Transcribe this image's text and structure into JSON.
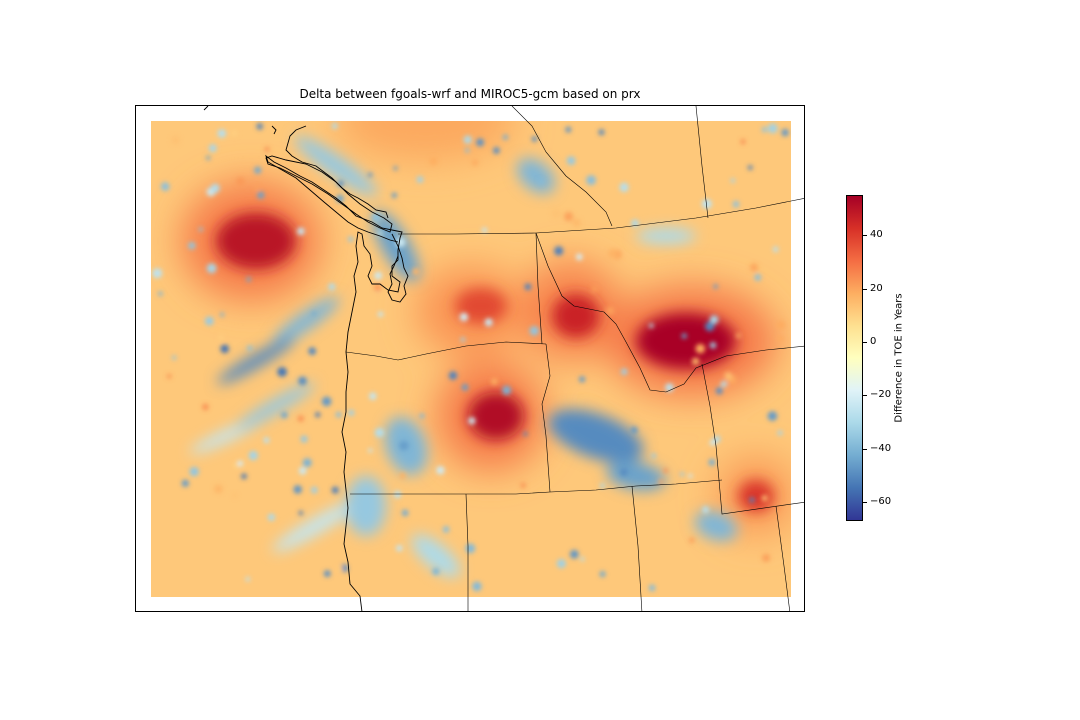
{
  "figure": {
    "title": "Delta between fgoals-wrf and MIROC5-gcm based on prx"
  },
  "colorbar": {
    "label": "Difference in TOE in Years",
    "range": [
      -67,
      55
    ],
    "ticks": [
      {
        "value": 40,
        "label": "40"
      },
      {
        "value": 20,
        "label": "20"
      },
      {
        "value": 0,
        "label": "0"
      },
      {
        "value": -20,
        "label": "−20"
      },
      {
        "value": -40,
        "label": "−40"
      },
      {
        "value": -60,
        "label": "−60"
      }
    ],
    "colormap": "RdYlBu_r",
    "colors": [
      "#313695",
      "#4575b4",
      "#74add1",
      "#abd9e9",
      "#e0f3f8",
      "#ffffbf",
      "#fee090",
      "#fdae61",
      "#f46d43",
      "#d73027",
      "#a50026"
    ]
  },
  "chart_data": {
    "type": "heatmap",
    "title": "Delta between fgoals-wrf and MIROC5-gcm based on prx",
    "colorbar_label": "Difference in TOE in Years",
    "value_range": [
      -67,
      55
    ],
    "background_value": 12,
    "hotspots": [
      {
        "region": "southwest British Columbia / northwest Washington",
        "value": 50
      },
      {
        "region": "northern Idaho / western Montana",
        "value": 42
      },
      {
        "region": "northeast Oregon / southeast Washington",
        "value": 50
      },
      {
        "region": "southwest Montana",
        "value": 50
      },
      {
        "region": "northern Wyoming",
        "value": 35
      },
      {
        "region": "Washington Cascades",
        "value": -45
      },
      {
        "region": "central Idaho",
        "value": -50
      },
      {
        "region": "western Oregon Cascades",
        "value": -40
      }
    ]
  }
}
